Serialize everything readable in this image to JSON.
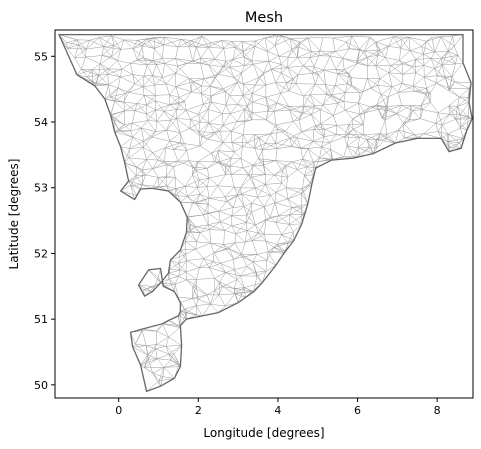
{
  "chart_data": {
    "type": "mesh",
    "title": "Mesh",
    "xlabel": "Longitude [degrees]",
    "ylabel": "Latitude [degrees]",
    "xlim": [
      -1.6,
      8.9
    ],
    "ylim": [
      49.8,
      55.4
    ],
    "xticks": [
      0,
      2,
      4,
      6,
      8
    ],
    "yticks": [
      50,
      51,
      52,
      53,
      54,
      55
    ],
    "grid": false,
    "colors": {
      "boundary": "#666666",
      "mesh": "#9a9a9a",
      "axes": "#000000"
    },
    "boundary": [
      [
        -1.5,
        55.33
      ],
      [
        -1.05,
        54.72
      ],
      [
        -0.6,
        54.55
      ],
      [
        -0.35,
        54.35
      ],
      [
        -0.2,
        54.1
      ],
      [
        -0.1,
        53.85
      ],
      [
        0.05,
        53.62
      ],
      [
        0.15,
        53.38
      ],
      [
        0.25,
        53.1
      ],
      [
        0.05,
        52.95
      ],
      [
        0.4,
        52.82
      ],
      [
        0.55,
        52.98
      ],
      [
        0.85,
        52.99
      ],
      [
        1.25,
        52.95
      ],
      [
        1.55,
        52.78
      ],
      [
        1.72,
        52.55
      ],
      [
        1.7,
        52.32
      ],
      [
        1.55,
        52.05
      ],
      [
        1.3,
        51.9
      ],
      [
        1.25,
        51.7
      ],
      [
        1.05,
        51.55
      ],
      [
        0.85,
        51.42
      ],
      [
        0.65,
        51.35
      ],
      [
        0.5,
        51.52
      ],
      [
        0.75,
        51.75
      ],
      [
        1.05,
        51.77
      ],
      [
        1.12,
        51.5
      ],
      [
        1.4,
        51.42
      ],
      [
        1.55,
        51.25
      ],
      [
        1.55,
        51.12
      ],
      [
        1.5,
        51.05
      ],
      [
        1.25,
        50.98
      ],
      [
        1.1,
        50.93
      ],
      [
        0.6,
        50.85
      ],
      [
        0.3,
        50.8
      ],
      [
        0.35,
        50.58
      ],
      [
        0.55,
        50.3
      ],
      [
        0.7,
        49.9
      ],
      [
        1.05,
        49.98
      ],
      [
        1.4,
        50.1
      ],
      [
        1.55,
        50.28
      ],
      [
        1.58,
        50.6
      ],
      [
        1.55,
        50.9
      ],
      [
        1.7,
        51.0
      ],
      [
        2.1,
        51.05
      ],
      [
        2.5,
        51.1
      ],
      [
        3.0,
        51.25
      ],
      [
        3.4,
        51.42
      ],
      [
        3.6,
        51.55
      ],
      [
        3.95,
        51.82
      ],
      [
        4.15,
        52.0
      ],
      [
        4.4,
        52.2
      ],
      [
        4.6,
        52.45
      ],
      [
        4.75,
        52.75
      ],
      [
        4.85,
        53.05
      ],
      [
        4.95,
        53.3
      ],
      [
        5.35,
        53.42
      ],
      [
        5.9,
        53.45
      ],
      [
        6.4,
        53.52
      ],
      [
        6.95,
        53.68
      ],
      [
        7.5,
        53.75
      ],
      [
        8.1,
        53.75
      ],
      [
        8.3,
        53.55
      ],
      [
        8.6,
        53.6
      ],
      [
        8.75,
        53.88
      ],
      [
        8.88,
        54.05
      ],
      [
        8.8,
        54.3
      ],
      [
        8.85,
        54.6
      ],
      [
        8.65,
        54.9
      ],
      [
        8.65,
        55.33
      ],
      [
        4.0,
        55.33
      ],
      [
        -1.5,
        55.33
      ]
    ]
  }
}
